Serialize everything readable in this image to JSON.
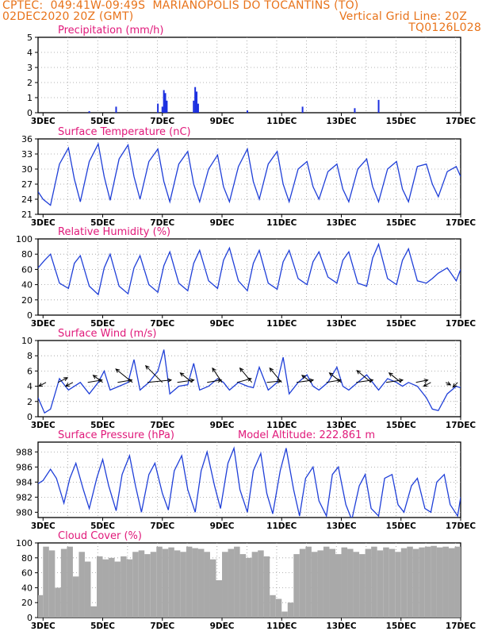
{
  "header": {
    "line1": "CPTEC:  049:41W-09:49S  MARIANOPOLIS DO TOCANTINS (TO)",
    "line2_left": "02DEC2020 20Z (GMT)",
    "line2_right": "Vertical Grid Line: 20Z",
    "line3_right": "TQ0126L028"
  },
  "colors": {
    "header": "#e8731a",
    "panel_title": "#e0197a",
    "series_line": "#1f3fd8",
    "precip_bar": "#1b2fe0",
    "cloud_fill": "#a9a9a9",
    "wind_arrow": "#000000",
    "grid": "#9a9a9a"
  },
  "x_axis": {
    "tick_labels": [
      "3DEC",
      "5DEC",
      "7DEC",
      "9DEC",
      "11DEC",
      "13DEC",
      "15DEC",
      "17DEC"
    ],
    "range_days": [
      2.833,
      17.0
    ]
  },
  "chart_data": [
    {
      "type": "bar",
      "title": "Precipitation (mm/h)",
      "ylim": [
        0,
        5
      ],
      "yticks": [
        "0",
        "1",
        "2",
        "3",
        "4",
        "5"
      ],
      "x": [
        4.55,
        5.45,
        6.85,
        7.0,
        7.05,
        7.1,
        7.15,
        8.05,
        8.1,
        8.15,
        8.2,
        9.85,
        11.7,
        13.45,
        14.25
      ],
      "values": [
        0.1,
        0.4,
        0.6,
        0.4,
        1.5,
        1.3,
        0.8,
        0.8,
        1.7,
        1.4,
        0.6,
        0.15,
        0.4,
        0.3,
        0.85
      ]
    },
    {
      "type": "line",
      "title": "Surface Temperature (nC)",
      "ylim": [
        21,
        36
      ],
      "yticks": [
        "21",
        "24",
        "27",
        "30",
        "33",
        "36"
      ],
      "x": [
        2.833,
        3.0,
        3.25,
        3.55,
        3.85,
        4.05,
        4.25,
        4.55,
        4.85,
        5.05,
        5.25,
        5.55,
        5.85,
        6.05,
        6.25,
        6.55,
        6.85,
        7.05,
        7.25,
        7.55,
        7.85,
        8.05,
        8.25,
        8.55,
        8.85,
        9.05,
        9.25,
        9.55,
        9.85,
        10.05,
        10.25,
        10.55,
        10.85,
        11.05,
        11.25,
        11.55,
        11.85,
        12.05,
        12.25,
        12.55,
        12.85,
        13.05,
        13.25,
        13.55,
        13.85,
        14.05,
        14.25,
        14.55,
        14.85,
        15.05,
        15.25,
        15.55,
        15.85,
        16.05,
        16.25,
        16.55,
        16.85,
        17.0
      ],
      "values": [
        25.5,
        24.0,
        22.8,
        31.0,
        34.2,
        28.0,
        23.5,
        31.5,
        35.0,
        28.5,
        23.8,
        32.0,
        34.8,
        28.5,
        24.0,
        31.5,
        34.0,
        27.5,
        23.5,
        31.0,
        33.5,
        27.0,
        23.5,
        30.0,
        32.8,
        26.5,
        23.5,
        30.5,
        34.0,
        27.5,
        24.0,
        31.0,
        33.5,
        27.0,
        23.5,
        30.0,
        31.5,
        26.5,
        24.0,
        29.5,
        31.0,
        26.0,
        23.5,
        30.0,
        32.0,
        26.5,
        23.5,
        30.0,
        31.5,
        26.0,
        23.5,
        30.5,
        31.0,
        27.0,
        24.5,
        29.5,
        30.5,
        28.5
      ]
    },
    {
      "type": "line",
      "title": "Relative Humidity (%)",
      "ylim": [
        0,
        100
      ],
      "yticks": [
        "0",
        "20",
        "40",
        "60",
        "80",
        "100"
      ],
      "x": [
        2.833,
        3.05,
        3.25,
        3.55,
        3.85,
        4.05,
        4.25,
        4.55,
        4.85,
        5.05,
        5.25,
        5.55,
        5.85,
        6.05,
        6.25,
        6.55,
        6.85,
        7.05,
        7.25,
        7.55,
        7.85,
        8.05,
        8.25,
        8.55,
        8.85,
        9.05,
        9.25,
        9.55,
        9.85,
        10.05,
        10.25,
        10.55,
        10.85,
        11.05,
        11.25,
        11.55,
        11.85,
        12.05,
        12.25,
        12.55,
        12.85,
        13.05,
        13.25,
        13.55,
        13.85,
        14.05,
        14.25,
        14.55,
        14.85,
        15.05,
        15.25,
        15.55,
        15.85,
        16.05,
        16.25,
        16.55,
        16.85,
        17.0
      ],
      "values": [
        62,
        72,
        80,
        42,
        35,
        68,
        78,
        38,
        27,
        62,
        80,
        38,
        28,
        62,
        78,
        40,
        30,
        65,
        83,
        42,
        32,
        68,
        85,
        45,
        35,
        72,
        88,
        45,
        32,
        68,
        85,
        42,
        34,
        70,
        85,
        48,
        40,
        70,
        83,
        50,
        42,
        72,
        83,
        42,
        38,
        75,
        93,
        48,
        40,
        72,
        87,
        45,
        42,
        48,
        55,
        62,
        45,
        60
      ]
    },
    {
      "type": "line",
      "title": "Surface Wind (m/s)",
      "ylim": [
        0,
        10
      ],
      "yticks": [
        "0",
        "2",
        "4",
        "6",
        "8",
        "10"
      ],
      "x": [
        2.833,
        3.05,
        3.25,
        3.55,
        3.85,
        4.05,
        4.25,
        4.55,
        4.85,
        5.05,
        5.25,
        5.55,
        5.85,
        6.05,
        6.25,
        6.55,
        6.85,
        7.05,
        7.25,
        7.55,
        7.85,
        8.05,
        8.25,
        8.55,
        8.85,
        9.05,
        9.25,
        9.55,
        9.85,
        10.05,
        10.25,
        10.55,
        10.85,
        11.05,
        11.25,
        11.55,
        11.85,
        12.05,
        12.25,
        12.55,
        12.85,
        13.05,
        13.25,
        13.55,
        13.85,
        14.05,
        14.25,
        14.55,
        14.85,
        15.05,
        15.25,
        15.55,
        15.85,
        16.05,
        16.25,
        16.55,
        16.85,
        17.0
      ],
      "values": [
        2.5,
        0.5,
        1.0,
        5.0,
        3.5,
        4.0,
        4.5,
        3.0,
        4.5,
        6.0,
        3.5,
        4.0,
        4.5,
        7.5,
        3.5,
        4.5,
        6.0,
        8.8,
        3.0,
        4.0,
        4.2,
        7.0,
        3.5,
        4.0,
        5.0,
        4.5,
        3.5,
        4.5,
        4.0,
        3.8,
        6.5,
        3.5,
        4.5,
        7.8,
        3.0,
        4.5,
        5.5,
        4.0,
        3.5,
        4.5,
        6.5,
        4.0,
        3.5,
        4.5,
        5.5,
        4.5,
        3.5,
        5.0,
        4.5,
        4.0,
        4.5,
        4.0,
        2.5,
        1.0,
        0.8,
        3.0,
        4.0,
        3.8
      ],
      "arrows": {
        "x": [
          3.1,
          3.5,
          4.0,
          4.5,
          5.0,
          5.5,
          6.0,
          6.5,
          7.0,
          7.5,
          8.0,
          8.5,
          9.0,
          9.5,
          10.0,
          10.5,
          11.0,
          11.5,
          12.0,
          12.5,
          13.0,
          13.5,
          14.0,
          14.5,
          15.0,
          15.5,
          16.0,
          16.5,
          16.9
        ],
        "u": [
          -1.5,
          2.0,
          -1.5,
          3.0,
          -2.0,
          3.0,
          -3.5,
          5.0,
          -3.5,
          3.5,
          -2.5,
          3.0,
          -2.0,
          3.0,
          -2.5,
          3.0,
          -2.5,
          3.5,
          -2.0,
          3.0,
          -2.5,
          3.5,
          -3.0,
          3.5,
          -2.5,
          2.5,
          -1.5,
          1.0,
          -1.0
        ],
        "v": [
          -0.8,
          1.0,
          -0.8,
          0.5,
          1.5,
          0.5,
          2.8,
          0.5,
          3.5,
          0.5,
          2.0,
          0.5,
          3.0,
          0.8,
          3.0,
          0.3,
          3.0,
          0.5,
          1.5,
          0.5,
          2.0,
          0.5,
          2.5,
          0.5,
          2.0,
          0.5,
          -0.8,
          -0.5,
          -1.0
        ]
      }
    },
    {
      "type": "line",
      "title": "Surface Pressure (hPa)",
      "annotation": "Model Altitude: 222.861 m",
      "ylim": [
        979.3,
        989.3
      ],
      "yticks": [
        "980",
        "982",
        "984",
        "986",
        "988"
      ],
      "x": [
        2.833,
        3.0,
        3.25,
        3.45,
        3.7,
        3.9,
        4.1,
        4.35,
        4.55,
        4.8,
        5.0,
        5.2,
        5.45,
        5.65,
        5.9,
        6.1,
        6.3,
        6.55,
        6.75,
        7.0,
        7.2,
        7.4,
        7.65,
        7.85,
        8.1,
        8.3,
        8.5,
        8.75,
        8.95,
        9.2,
        9.4,
        9.6,
        9.85,
        10.05,
        10.3,
        10.5,
        10.7,
        10.95,
        11.15,
        11.4,
        11.6,
        11.8,
        12.05,
        12.25,
        12.5,
        12.7,
        12.9,
        13.15,
        13.35,
        13.6,
        13.8,
        14.0,
        14.25,
        14.45,
        14.7,
        14.9,
        15.1,
        15.35,
        15.55,
        15.8,
        16.0,
        16.2,
        16.45,
        16.65,
        16.9,
        17.0
      ],
      "values": [
        983.8,
        984.2,
        985.7,
        984.5,
        981.2,
        984.5,
        986.5,
        983.0,
        980.5,
        984.5,
        987.0,
        983.5,
        980.2,
        985.0,
        987.5,
        983.5,
        980.0,
        985.0,
        986.5,
        982.5,
        980.3,
        985.5,
        987.5,
        983.0,
        980.0,
        985.5,
        988.0,
        983.5,
        980.5,
        986.5,
        988.5,
        983.0,
        980.0,
        985.5,
        987.8,
        982.5,
        979.8,
        985.5,
        988.5,
        983.0,
        979.5,
        984.5,
        986.0,
        981.5,
        979.5,
        985.0,
        986.0,
        981.0,
        979.0,
        983.5,
        985.0,
        980.5,
        979.5,
        984.5,
        985.0,
        981.0,
        980.0,
        983.5,
        984.5,
        980.5,
        980.0,
        984.0,
        985.0,
        981.0,
        979.5,
        982.0
      ]
    },
    {
      "type": "area",
      "title": "Cloud Cover (%)",
      "ylim": [
        0,
        100
      ],
      "yticks": [
        "0",
        "20",
        "40",
        "60",
        "80",
        "100"
      ],
      "x": [
        2.833,
        3.0,
        3.2,
        3.4,
        3.6,
        3.8,
        4.0,
        4.2,
        4.4,
        4.6,
        4.8,
        5.0,
        5.2,
        5.4,
        5.6,
        5.8,
        6.0,
        6.2,
        6.4,
        6.6,
        6.8,
        7.0,
        7.2,
        7.4,
        7.6,
        7.8,
        8.0,
        8.2,
        8.4,
        8.6,
        8.8,
        9.0,
        9.2,
        9.4,
        9.6,
        9.8,
        10.0,
        10.2,
        10.4,
        10.6,
        10.8,
        11.0,
        11.2,
        11.4,
        11.6,
        11.8,
        12.0,
        12.2,
        12.4,
        12.6,
        12.8,
        13.0,
        13.2,
        13.4,
        13.6,
        13.8,
        14.0,
        14.2,
        14.4,
        14.6,
        14.8,
        15.0,
        15.2,
        15.4,
        15.6,
        15.8,
        16.0,
        16.2,
        16.4,
        16.6,
        16.8,
        17.0
      ],
      "values": [
        30,
        95,
        90,
        40,
        92,
        95,
        55,
        88,
        75,
        15,
        82,
        78,
        80,
        75,
        82,
        78,
        88,
        90,
        85,
        88,
        95,
        92,
        94,
        90,
        88,
        95,
        93,
        92,
        88,
        78,
        50,
        88,
        92,
        95,
        85,
        80,
        88,
        90,
        82,
        30,
        25,
        8,
        20,
        85,
        92,
        95,
        88,
        90,
        95,
        92,
        85,
        94,
        92,
        88,
        85,
        92,
        95,
        90,
        94,
        92,
        88,
        93,
        95,
        92,
        94,
        95,
        96,
        94,
        95,
        93,
        95,
        96
      ]
    }
  ]
}
